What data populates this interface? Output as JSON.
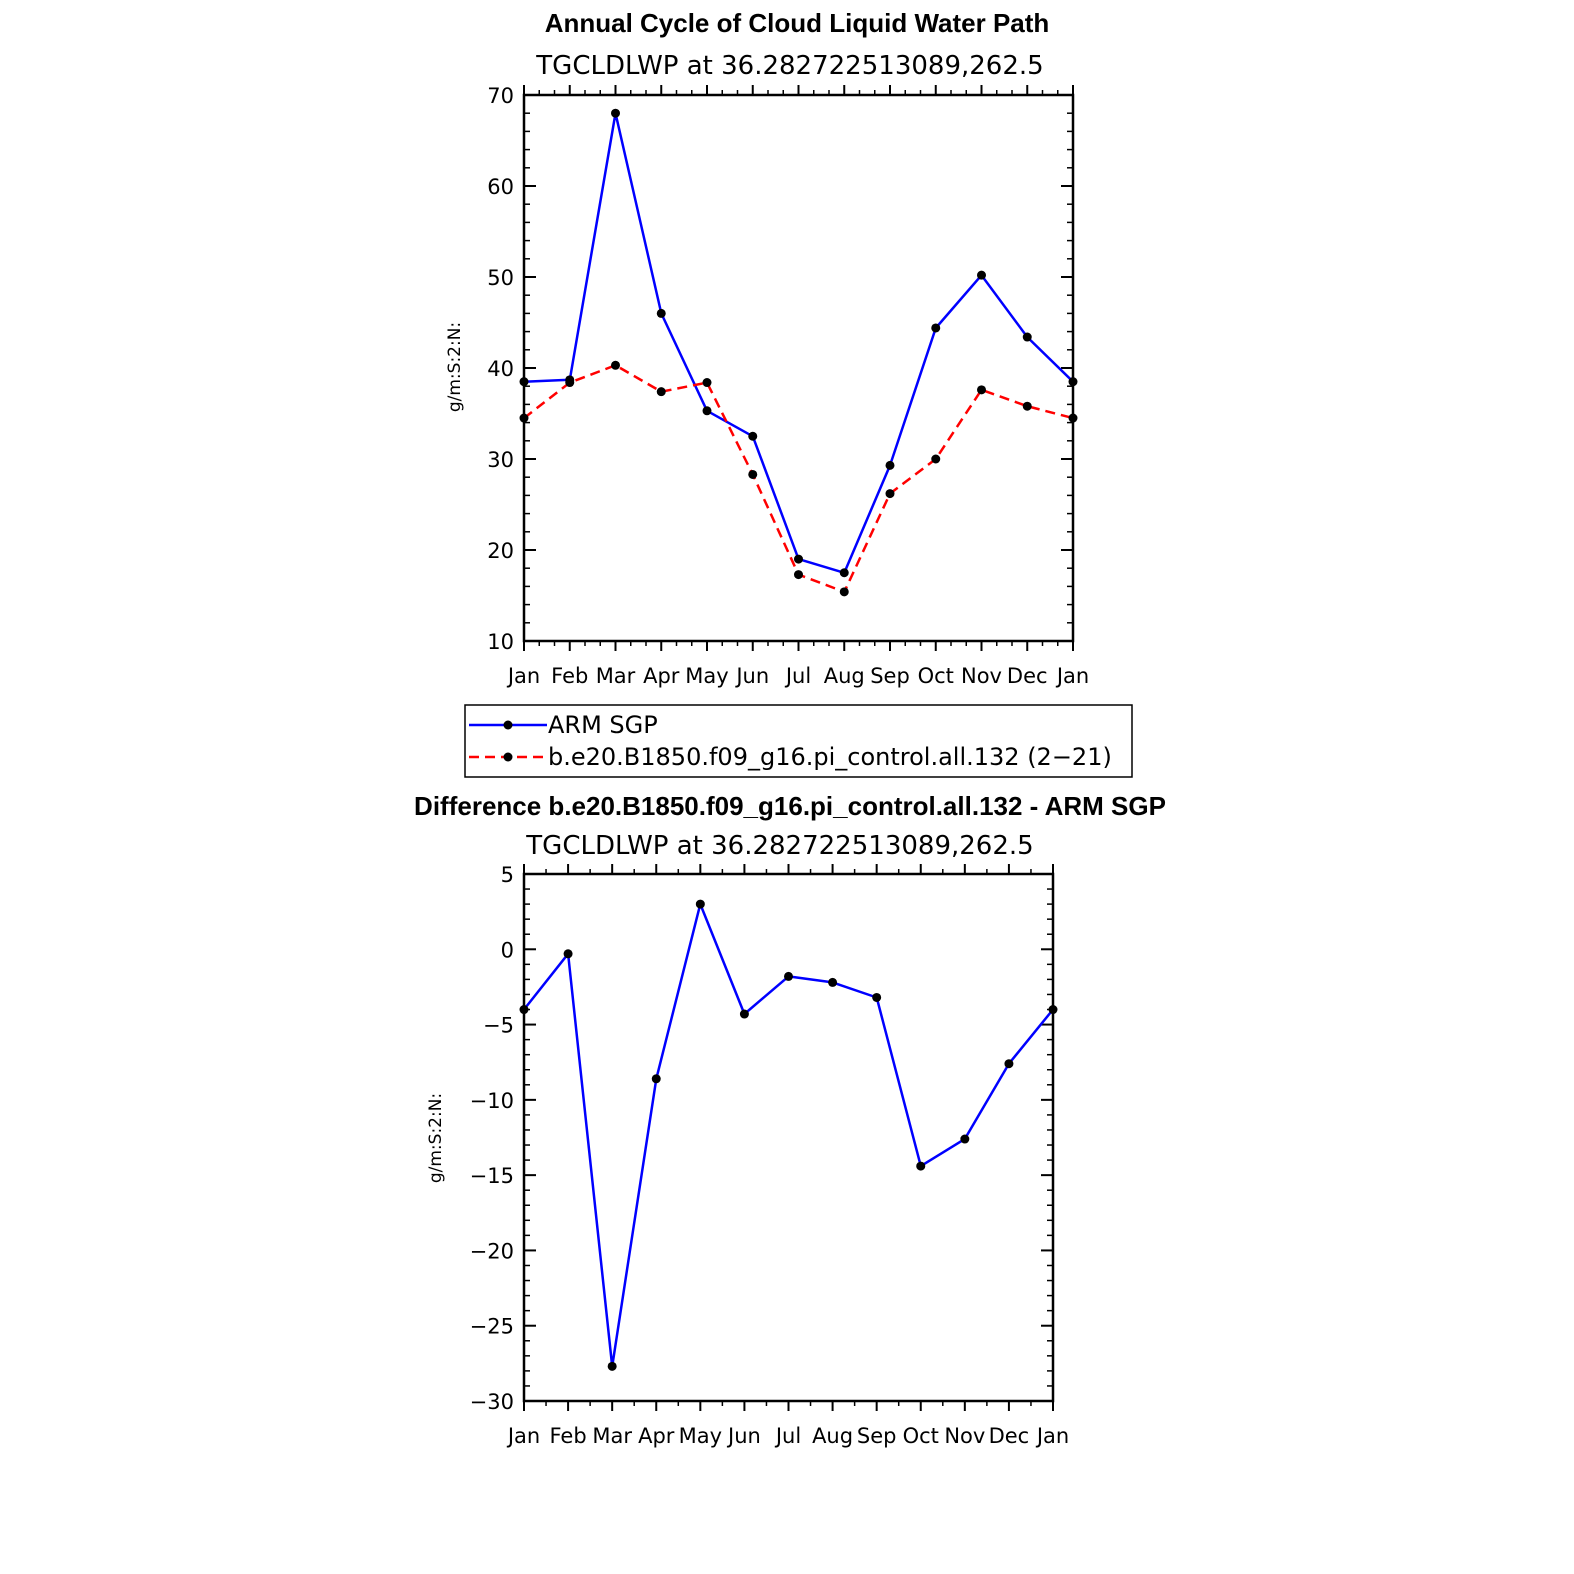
{
  "chart_data": [
    {
      "type": "line",
      "title": "Annual Cycle of Cloud Liquid Water Path",
      "subtitle": "TGCLDLWP  at  36.282722513089,262.5",
      "ylabel": "g/m:S:2:N:",
      "ylim": [
        10,
        70
      ],
      "yticks": [
        10,
        20,
        30,
        40,
        50,
        60,
        70
      ],
      "categories": [
        "Jan",
        "Feb",
        "Mar",
        "Apr",
        "May",
        "Jun",
        "Jul",
        "Aug",
        "Sep",
        "Oct",
        "Nov",
        "Dec",
        "Jan"
      ],
      "series": [
        {
          "name": "ARM SGP",
          "color": "#0000ff",
          "dash": "solid",
          "values": [
            38.5,
            38.7,
            68.0,
            46.0,
            35.3,
            32.5,
            19.0,
            17.5,
            29.3,
            44.4,
            50.2,
            43.4,
            38.5
          ]
        },
        {
          "name": "b.e20.B1850.f09_g16.pi_control.all.132 (2−21)",
          "color": "#ff0000",
          "dash": "dashed",
          "values": [
            34.5,
            38.4,
            40.3,
            37.4,
            38.4,
            28.3,
            17.3,
            15.4,
            26.2,
            30.0,
            37.6,
            35.8,
            34.5
          ]
        }
      ]
    },
    {
      "type": "line",
      "title": "Difference b.e20.B1850.f09_g16.pi_control.all.132 - ARM SGP",
      "subtitle": "TGCLDLWP  at  36.282722513089,262.5",
      "ylabel": "g/m:S:2:N:",
      "ylim": [
        -30,
        5
      ],
      "yticks": [
        -30,
        -25,
        -20,
        -15,
        -10,
        -5,
        0,
        5
      ],
      "categories": [
        "Jan",
        "Feb",
        "Mar",
        "Apr",
        "May",
        "Jun",
        "Jul",
        "Aug",
        "Sep",
        "Oct",
        "Nov",
        "Dec",
        "Jan"
      ],
      "series": [
        {
          "name": "Difference",
          "color": "#0000ff",
          "dash": "solid",
          "values": [
            -4.0,
            -0.3,
            -27.7,
            -8.6,
            3.0,
            -4.3,
            -1.8,
            -2.2,
            -3.2,
            -14.4,
            -12.6,
            -7.6,
            -4.0
          ]
        }
      ]
    }
  ]
}
